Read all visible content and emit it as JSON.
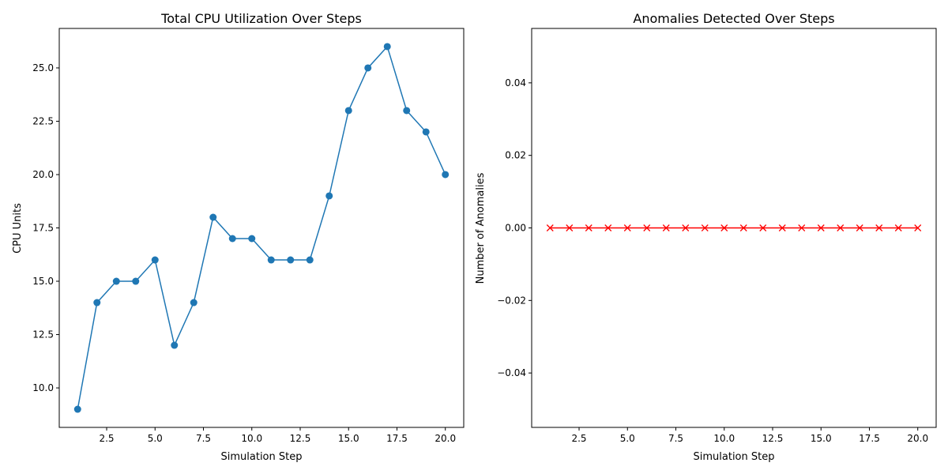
{
  "chart_data": [
    {
      "type": "line",
      "title": "Total CPU Utilization Over Steps",
      "xlabel": "Simulation Step",
      "ylabel": "CPU Units",
      "x": [
        1,
        2,
        3,
        4,
        5,
        6,
        7,
        8,
        9,
        10,
        11,
        12,
        13,
        14,
        15,
        16,
        17,
        18,
        19,
        20
      ],
      "series": [
        {
          "values": [
            9,
            14,
            15,
            15,
            16,
            12,
            14,
            18,
            17,
            17,
            16,
            16,
            16,
            19,
            23,
            25,
            26,
            23,
            22,
            20
          ],
          "color": "#1f77b4",
          "marker": "circle"
        }
      ],
      "xlim": [
        0.05,
        20.95
      ],
      "ylim": [
        8.15,
        26.85
      ],
      "xticks": [
        2.5,
        5.0,
        7.5,
        10.0,
        12.5,
        15.0,
        17.5,
        20.0
      ],
      "xtick_labels": [
        "2.5",
        "5.0",
        "7.5",
        "10.0",
        "12.5",
        "15.0",
        "17.5",
        "20.0"
      ],
      "yticks": [
        10.0,
        12.5,
        15.0,
        17.5,
        20.0,
        22.5,
        25.0
      ],
      "ytick_labels": [
        "10.0",
        "12.5",
        "15.0",
        "17.5",
        "20.0",
        "22.5",
        "25.0"
      ],
      "grid": false
    },
    {
      "type": "line",
      "title": "Anomalies Detected Over Steps",
      "xlabel": "Simulation Step",
      "ylabel": "Number of Anomalies",
      "x": [
        1,
        2,
        3,
        4,
        5,
        6,
        7,
        8,
        9,
        10,
        11,
        12,
        13,
        14,
        15,
        16,
        17,
        18,
        19,
        20
      ],
      "series": [
        {
          "values": [
            0,
            0,
            0,
            0,
            0,
            0,
            0,
            0,
            0,
            0,
            0,
            0,
            0,
            0,
            0,
            0,
            0,
            0,
            0,
            0
          ],
          "color": "#ff0000",
          "marker": "x"
        }
      ],
      "xlim": [
        0.05,
        20.95
      ],
      "ylim": [
        -0.055,
        0.055
      ],
      "xticks": [
        2.5,
        5.0,
        7.5,
        10.0,
        12.5,
        15.0,
        17.5,
        20.0
      ],
      "xtick_labels": [
        "2.5",
        "5.0",
        "7.5",
        "10.0",
        "12.5",
        "15.0",
        "17.5",
        "20.0"
      ],
      "yticks": [
        -0.04,
        -0.02,
        0.0,
        0.02,
        0.04
      ],
      "ytick_labels": [
        "−0.04",
        "−0.02",
        "0.00",
        "0.02",
        "0.04"
      ],
      "grid": false
    }
  ]
}
